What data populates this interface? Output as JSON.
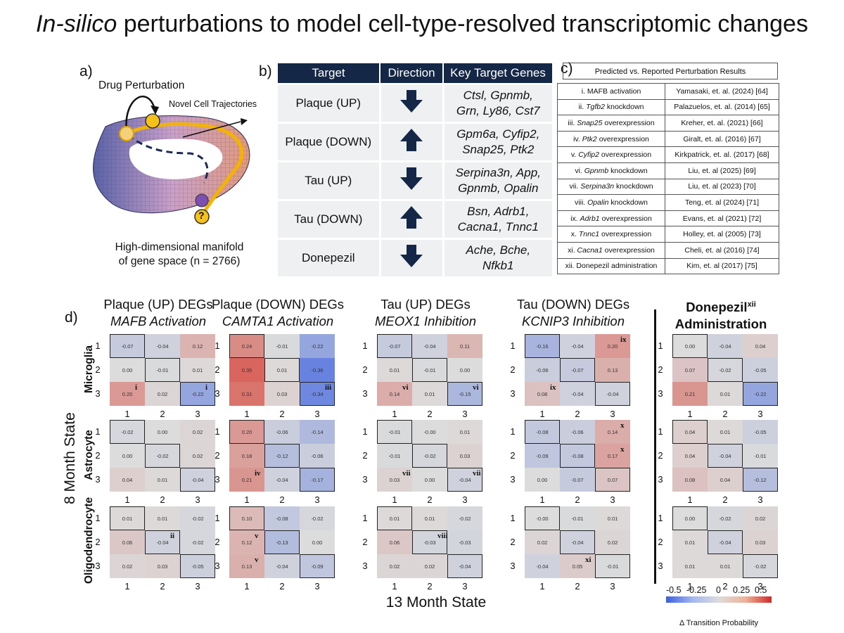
{
  "title": {
    "italic": "In-silico",
    "rest": " perturbations to model cell-type-resolved transcriptomic changes"
  },
  "panel_labels": {
    "a": "a)",
    "b": "b)",
    "c": "c)",
    "d": "d)"
  },
  "manifold": {
    "drug_perturbation": "Drug Perturbation",
    "novel_trajectories": "Novel Cell Trajectories",
    "question": "?",
    "caption_line1": "High-dimensional manifold",
    "caption_line2": "of gene space (n = 2766)"
  },
  "table_b": {
    "headers": [
      "Target",
      "Direction",
      "Key Target Genes"
    ],
    "rows": [
      {
        "target": "Plaque (UP)",
        "direction": "down",
        "genes1": "Ctsl, Gpnmb,",
        "genes2": "Grn, Ly86, Cst7"
      },
      {
        "target": "Plaque (DOWN)",
        "direction": "up",
        "genes1": "Gpm6a, Cyfip2,",
        "genes2": "Snap25, Ptk2"
      },
      {
        "target": "Tau (UP)",
        "direction": "down",
        "genes1": "Serpina3n, App,",
        "genes2": "Gpnmb, Opalin"
      },
      {
        "target": "Tau (DOWN)",
        "direction": "up",
        "genes1": "Bsn, Adrb1,",
        "genes2": "Cacna1, Tnnc1"
      },
      {
        "target": "Donepezil",
        "direction": "down",
        "genes1": "Ache, Bche,",
        "genes2": "Nfkb1"
      }
    ],
    "arrow_color": "#152746"
  },
  "table_c": {
    "title": "Predicted vs. Reported Perturbation Results",
    "rows": [
      {
        "num": "i.",
        "gene": "MAFB",
        "gene_italic": false,
        "action": "activation",
        "ref": "Yamasaki, et. al. (2024) [64]"
      },
      {
        "num": "ii.",
        "gene": "Tgfb2",
        "gene_italic": true,
        "action": "knockdown",
        "ref": "Palazuelos, et. al. (2014) [65]"
      },
      {
        "num": "iii.",
        "gene": "Snap25",
        "gene_italic": true,
        "action": "overexpression",
        "ref": "Kreher, et. al. (2021) [66]"
      },
      {
        "num": "iv.",
        "gene": "Ptk2",
        "gene_italic": true,
        "action": "overexpression",
        "ref": "Giralt, et. al. (2016) [67]"
      },
      {
        "num": "v.",
        "gene": "Cyfip2",
        "gene_italic": true,
        "action": "overexpression",
        "ref": "Kirkpatrick, et. al. (2017) [68]"
      },
      {
        "num": "vi.",
        "gene": "Gpnmb",
        "gene_italic": true,
        "action": "knockdown",
        "ref": "Liu, et. al (2025) [69]"
      },
      {
        "num": "vii.",
        "gene": "Serpina3n",
        "gene_italic": true,
        "action": "knockdown",
        "ref": "Liu, et. al (2023) [70]"
      },
      {
        "num": "viii.",
        "gene": "Opalin",
        "gene_italic": true,
        "action": "knockdown",
        "ref": "Teng, et. al (2024) [71]"
      },
      {
        "num": "ix.",
        "gene": "Adrb1",
        "gene_italic": true,
        "action": "overexpression",
        "ref": "Evans, et. al (2021) [72]"
      },
      {
        "num": "x.",
        "gene": "Tnnc1",
        "gene_italic": true,
        "action": "overexpression",
        "ref": "Holley, et. al (2005) [73]"
      },
      {
        "num": "xi.",
        "gene": "Cacna1",
        "gene_italic": true,
        "action": "overexpression",
        "ref": "Cheli, et. al (2016) [74]"
      },
      {
        "num": "xii.",
        "gene": "Donepezil administration",
        "gene_italic": false,
        "action": "",
        "ref": "Kim, et. al (2017) [75]"
      }
    ]
  },
  "heatmap_panel": {
    "y_axis_label": "8 Month State",
    "x_axis_label": "13 Month State",
    "cell_types": [
      "Microglia",
      "Astrocyte",
      "Oligodendrocyte"
    ],
    "state_labels": [
      "1",
      "2",
      "3"
    ],
    "columns": [
      {
        "line1": "Plaque (UP) DEGs",
        "line2": "MAFB Activation"
      },
      {
        "line1": "Plaque (DOWN) DEGs",
        "line2": "CAMTA1 Activation"
      },
      {
        "line1": "Tau (UP) DEGs",
        "line2": "MEOX1 Inhibition"
      },
      {
        "line1": "Tau (DOWN) DEGs",
        "line2": "KCNIP3 Inhibition"
      },
      {
        "line1": "Donepezil",
        "sup": "xii",
        "line2": "Administration"
      }
    ],
    "colorbar": {
      "ticks": [
        "-0.5",
        "-0.25",
        "0",
        "0.25",
        "0.5"
      ],
      "range": [
        -0.5,
        0.5
      ],
      "label": "Δ Transition Probability"
    }
  },
  "chart_data": {
    "type": "heatmap",
    "x_label": "13 Month State",
    "y_label": "8 Month State",
    "value_range": [
      -0.5,
      0.5
    ],
    "colorbar_label": "Δ Transition Probability",
    "panels": [
      {
        "column": 0,
        "cell_type": "Microglia",
        "values": [
          [
            "-0.07",
            "-0.04",
            "0.12"
          ],
          [
            "0.00",
            "-0.01",
            "0.01"
          ],
          [
            "0.20",
            "0.02",
            "-0.22"
          ]
        ],
        "boxes": [
          [
            0,
            0
          ],
          [
            1,
            1
          ],
          [
            2,
            2
          ]
        ],
        "annotations": [
          {
            "r": 2,
            "c": 0,
            "text": "i"
          },
          {
            "r": 2,
            "c": 2,
            "text": "i"
          }
        ]
      },
      {
        "column": 0,
        "cell_type": "Astrocyte",
        "values": [
          [
            "-0.02",
            "0.00",
            "0.02"
          ],
          [
            "0.00",
            "-0.02",
            "0.02"
          ],
          [
            "0.04",
            "0.01",
            "-0.04"
          ]
        ],
        "boxes": [
          [
            0,
            0
          ],
          [
            1,
            1
          ],
          [
            2,
            2
          ]
        ],
        "annotations": []
      },
      {
        "column": 0,
        "cell_type": "Oligodendrocyte",
        "values": [
          [
            "0.01",
            "0.01",
            "-0.02"
          ],
          [
            "0.06",
            "-0.04",
            "-0.02"
          ],
          [
            "0.02",
            "0.03",
            "-0.05"
          ]
        ],
        "boxes": [
          [
            0,
            0
          ],
          [
            1,
            1
          ],
          [
            2,
            2
          ]
        ],
        "annotations": [
          {
            "r": 1,
            "c": 1,
            "text": "ii"
          }
        ]
      },
      {
        "column": 1,
        "cell_type": "Microglia",
        "values": [
          [
            "0.24",
            "-0.01",
            "-0.22"
          ],
          [
            "0.35",
            "0.01",
            "-0.36"
          ],
          [
            "0.31",
            "0.03",
            "-0.34"
          ]
        ],
        "boxes": [
          [
            0,
            0
          ],
          [
            1,
            1
          ],
          [
            2,
            2
          ]
        ],
        "annotations": [
          {
            "r": 2,
            "c": 2,
            "text": "iii"
          }
        ]
      },
      {
        "column": 1,
        "cell_type": "Astrocyte",
        "values": [
          [
            "0.20",
            "-0.06",
            "-0.14"
          ],
          [
            "0.18",
            "-0.12",
            "-0.06"
          ],
          [
            "0.21",
            "-0.04",
            "-0.17"
          ]
        ],
        "boxes": [
          [
            0,
            0
          ],
          [
            1,
            1
          ],
          [
            2,
            2
          ]
        ],
        "annotations": [
          {
            "r": 2,
            "c": 0,
            "text": "iv"
          }
        ]
      },
      {
        "column": 1,
        "cell_type": "Oligodendrocyte",
        "values": [
          [
            "0.10",
            "-0.08",
            "-0.02"
          ],
          [
            "0.12",
            "-0.13",
            "0.00"
          ],
          [
            "0.13",
            "-0.04",
            "-0.09"
          ]
        ],
        "boxes": [
          [
            0,
            0
          ],
          [
            1,
            1
          ],
          [
            2,
            2
          ]
        ],
        "annotations": [
          {
            "r": 1,
            "c": 0,
            "text": "v"
          },
          {
            "r": 2,
            "c": 0,
            "text": "v"
          }
        ]
      },
      {
        "column": 2,
        "cell_type": "Microglia",
        "values": [
          [
            "-0.07",
            "-0.04",
            "0.11"
          ],
          [
            "0.01",
            "-0.01",
            "0.00"
          ],
          [
            "0.14",
            "0.01",
            "-0.15"
          ]
        ],
        "boxes": [
          [
            0,
            0
          ],
          [
            1,
            1
          ],
          [
            2,
            2
          ]
        ],
        "annotations": [
          {
            "r": 2,
            "c": 0,
            "text": "vi"
          },
          {
            "r": 2,
            "c": 2,
            "text": "vi"
          }
        ]
      },
      {
        "column": 2,
        "cell_type": "Astrocyte",
        "values": [
          [
            "-0.01",
            "-0.00",
            "0.01"
          ],
          [
            "-0.01",
            "-0.02",
            "0.03"
          ],
          [
            "0.03",
            "0.00",
            "-0.04"
          ]
        ],
        "boxes": [
          [
            0,
            0
          ],
          [
            1,
            1
          ],
          [
            2,
            2
          ]
        ],
        "annotations": [
          {
            "r": 2,
            "c": 0,
            "text": "vii"
          },
          {
            "r": 2,
            "c": 2,
            "text": "vii"
          }
        ]
      },
      {
        "column": 2,
        "cell_type": "Oligodendrocyte",
        "values": [
          [
            "0.01",
            "0.01",
            "-0.02"
          ],
          [
            "0.06",
            "-0.03",
            "-0.03"
          ],
          [
            "0.02",
            "0.02",
            "-0.04"
          ]
        ],
        "boxes": [
          [
            0,
            0
          ],
          [
            1,
            1
          ],
          [
            2,
            2
          ]
        ],
        "annotations": [
          {
            "r": 1,
            "c": 1,
            "text": "viii"
          }
        ]
      },
      {
        "column": 3,
        "cell_type": "Microglia",
        "values": [
          [
            "-0.16",
            "-0.04",
            "0.20"
          ],
          [
            "-0.06",
            "-0.07",
            "0.13"
          ],
          [
            "0.08",
            "-0.04",
            "-0.04"
          ]
        ],
        "boxes": [
          [
            0,
            0
          ],
          [
            1,
            1
          ],
          [
            2,
            2
          ]
        ],
        "annotations": [
          {
            "r": 0,
            "c": 2,
            "text": "ix"
          },
          {
            "r": 2,
            "c": 0,
            "text": "ix"
          }
        ]
      },
      {
        "column": 3,
        "cell_type": "Astrocyte",
        "values": [
          [
            "-0.08",
            "-0.06",
            "0.14"
          ],
          [
            "-0.09",
            "-0.08",
            "0.17"
          ],
          [
            "0.00",
            "-0.07",
            "0.07"
          ]
        ],
        "boxes": [
          [
            0,
            0
          ],
          [
            1,
            1
          ],
          [
            2,
            2
          ]
        ],
        "annotations": [
          {
            "r": 0,
            "c": 2,
            "text": "x"
          },
          {
            "r": 1,
            "c": 2,
            "text": "x"
          }
        ]
      },
      {
        "column": 3,
        "cell_type": "Oligodendrocyte",
        "values": [
          [
            "-0.00",
            "-0.01",
            "0.01"
          ],
          [
            "0.02",
            "-0.04",
            "0.02"
          ],
          [
            "-0.04",
            "0.05",
            "-0.01"
          ]
        ],
        "boxes": [
          [
            0,
            0
          ],
          [
            1,
            1
          ],
          [
            2,
            2
          ]
        ],
        "annotations": [
          {
            "r": 2,
            "c": 1,
            "text": "xi"
          }
        ]
      },
      {
        "column": 4,
        "cell_type": "Microglia",
        "values": [
          [
            "0.00",
            "-0.04",
            "0.04"
          ],
          [
            "0.07",
            "-0.02",
            "-0.05"
          ],
          [
            "0.21",
            "0.01",
            "-0.22"
          ]
        ],
        "boxes": [
          [
            0,
            0
          ],
          [
            1,
            1
          ],
          [
            2,
            2
          ]
        ],
        "annotations": []
      },
      {
        "column": 4,
        "cell_type": "Astrocyte",
        "values": [
          [
            "0.04",
            "0.01",
            "-0.05"
          ],
          [
            "0.04",
            "-0.04",
            "-0.01"
          ],
          [
            "0.08",
            "0.04",
            "-0.12"
          ]
        ],
        "boxes": [
          [
            0,
            0
          ],
          [
            1,
            1
          ],
          [
            2,
            2
          ]
        ],
        "annotations": []
      },
      {
        "column": 4,
        "cell_type": "Oligodendrocyte",
        "values": [
          [
            "0.00",
            "-0.02",
            "0.02"
          ],
          [
            "0.01",
            "-0.04",
            "0.03"
          ],
          [
            "0.01",
            "0.01",
            "-0.02"
          ]
        ],
        "boxes": [
          [
            0,
            0
          ],
          [
            1,
            1
          ],
          [
            2,
            2
          ]
        ],
        "annotations": []
      }
    ]
  }
}
